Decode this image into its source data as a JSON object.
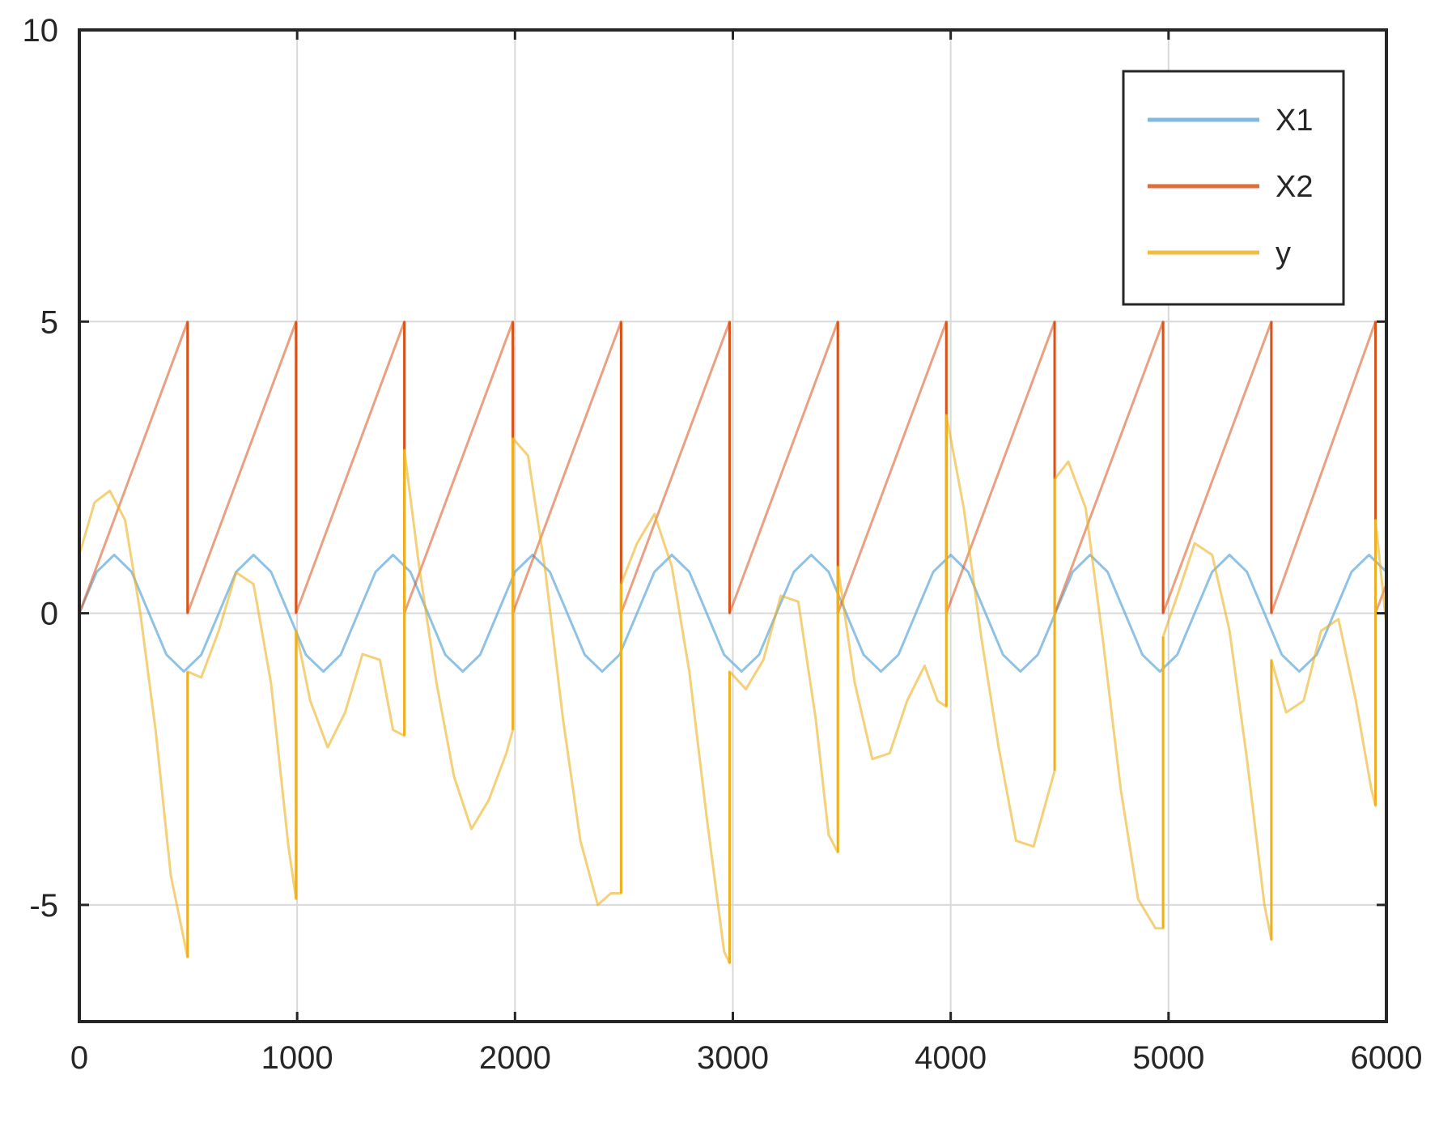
{
  "chart_data": {
    "type": "line",
    "title": "",
    "xlabel": "",
    "ylabel": "",
    "xlim": [
      0,
      6000
    ],
    "ylim": [
      -7,
      10
    ],
    "xticks": [
      0,
      1000,
      2000,
      3000,
      4000,
      5000,
      6000
    ],
    "yticks": [
      -5,
      0,
      5,
      10
    ],
    "xtick_labels": [
      "0",
      "1000",
      "2000",
      "3000",
      "4000",
      "5000",
      "6000"
    ],
    "ytick_labels": [
      "-5",
      "0",
      "5",
      "10"
    ],
    "grid": true,
    "legend_position": "top-right",
    "series": [
      {
        "name": "X1",
        "color": "#6aaedb",
        "x": [
          0,
          80,
          160,
          240,
          320,
          400,
          480,
          560,
          640,
          720,
          800,
          880,
          960,
          1040,
          1120,
          1200,
          1280,
          1360,
          1440,
          1520,
          1600,
          1680,
          1760,
          1840,
          1920,
          2000,
          2080,
          2160,
          2240,
          2320,
          2400,
          2480,
          2560,
          2640,
          2720,
          2800,
          2880,
          2960,
          3040,
          3120,
          3200,
          3280,
          3360,
          3440,
          3520,
          3600,
          3680,
          3760,
          3840,
          3920,
          4000,
          4080,
          4160,
          4240,
          4320,
          4400,
          4480,
          4560,
          4640,
          4720,
          4800,
          4880,
          4960,
          5040,
          5120,
          5200,
          5280,
          5360,
          5440,
          5520,
          5600,
          5680,
          5760,
          5840,
          5920,
          6000
        ],
        "y": [
          0.0,
          0.71,
          1.0,
          0.71,
          0.0,
          -0.71,
          -1.0,
          -0.71,
          0.0,
          0.71,
          1.0,
          0.71,
          0.0,
          -0.71,
          -1.0,
          -0.71,
          0.0,
          0.71,
          1.0,
          0.71,
          0.0,
          -0.71,
          -1.0,
          -0.71,
          0.0,
          0.71,
          1.0,
          0.71,
          0.0,
          -0.71,
          -1.0,
          -0.71,
          0.0,
          0.71,
          1.0,
          0.71,
          0.0,
          -0.71,
          -1.0,
          -0.71,
          0.0,
          0.71,
          1.0,
          0.71,
          0.0,
          -0.71,
          -1.0,
          -0.71,
          0.0,
          0.71,
          1.0,
          0.71,
          0.0,
          -0.71,
          -1.0,
          -0.71,
          0.0,
          0.71,
          1.0,
          0.71,
          0.0,
          -0.71,
          -1.0,
          -0.71,
          0.0,
          0.71,
          1.0,
          0.71,
          0.0,
          -0.71,
          -1.0,
          -0.71,
          0.0,
          0.71,
          1.0,
          0.71
        ]
      },
      {
        "name": "X2",
        "color": "#d95319",
        "x": [
          0,
          497,
          497,
          995,
          995,
          1492,
          1492,
          1990,
          1990,
          2487,
          2487,
          2985,
          2985,
          3482,
          3482,
          3980,
          3980,
          4477,
          4477,
          4975,
          4975,
          5472,
          5472,
          5950,
          5950,
          6000
        ],
        "y": [
          0,
          5,
          0,
          5,
          0,
          5,
          0,
          5,
          0,
          5,
          0,
          5,
          0,
          5,
          0,
          5,
          0,
          5,
          0,
          5,
          0,
          5,
          0,
          5,
          0,
          0.5
        ]
      },
      {
        "name": "y",
        "color": "#edb120",
        "x": [
          0,
          70,
          140,
          210,
          280,
          350,
          420,
          497,
          497,
          560,
          640,
          720,
          800,
          880,
          960,
          995,
          995,
          1060,
          1140,
          1220,
          1300,
          1380,
          1440,
          1492,
          1492,
          1560,
          1640,
          1720,
          1800,
          1880,
          1960,
          1990,
          1990,
          2060,
          2140,
          2220,
          2300,
          2380,
          2440,
          2487,
          2487,
          2560,
          2640,
          2720,
          2800,
          2880,
          2960,
          2985,
          2985,
          3060,
          3140,
          3220,
          3300,
          3380,
          3440,
          3482,
          3482,
          3560,
          3640,
          3720,
          3800,
          3880,
          3940,
          3980,
          3980,
          4060,
          4140,
          4220,
          4300,
          4380,
          4440,
          4477,
          4477,
          4540,
          4620,
          4700,
          4780,
          4860,
          4940,
          4975,
          4975,
          5040,
          5120,
          5200,
          5280,
          5360,
          5440,
          5472,
          5472,
          5540,
          5620,
          5700,
          5780,
          5860,
          5930,
          5950,
          5950,
          6000
        ],
        "y": [
          1.0,
          1.9,
          2.1,
          1.6,
          0.0,
          -2.0,
          -4.5,
          -5.9,
          -1.0,
          -1.1,
          -0.3,
          0.7,
          0.5,
          -1.2,
          -4.0,
          -4.9,
          -0.3,
          -1.5,
          -2.3,
          -1.7,
          -0.7,
          -0.8,
          -2.0,
          -2.1,
          2.8,
          0.8,
          -1.2,
          -2.8,
          -3.7,
          -3.2,
          -2.4,
          -2.0,
          3.0,
          2.7,
          0.7,
          -1.8,
          -3.9,
          -5.0,
          -4.8,
          -4.8,
          0.5,
          1.2,
          1.7,
          0.8,
          -1.0,
          -3.5,
          -5.8,
          -6.0,
          -1.0,
          -1.3,
          -0.8,
          0.3,
          0.2,
          -1.8,
          -3.8,
          -4.1,
          0.8,
          -1.2,
          -2.5,
          -2.4,
          -1.5,
          -0.9,
          -1.5,
          -1.6,
          3.4,
          1.8,
          -0.4,
          -2.3,
          -3.9,
          -4.0,
          -3.2,
          -2.7,
          2.3,
          2.6,
          1.8,
          -0.5,
          -3.0,
          -4.9,
          -5.4,
          -5.4,
          -0.4,
          0.3,
          1.2,
          1.0,
          -0.3,
          -2.5,
          -5.0,
          -5.6,
          -0.8,
          -1.7,
          -1.5,
          -0.3,
          -0.1,
          -1.5,
          -3.0,
          -3.3,
          1.6,
          -0.2
        ]
      }
    ]
  }
}
